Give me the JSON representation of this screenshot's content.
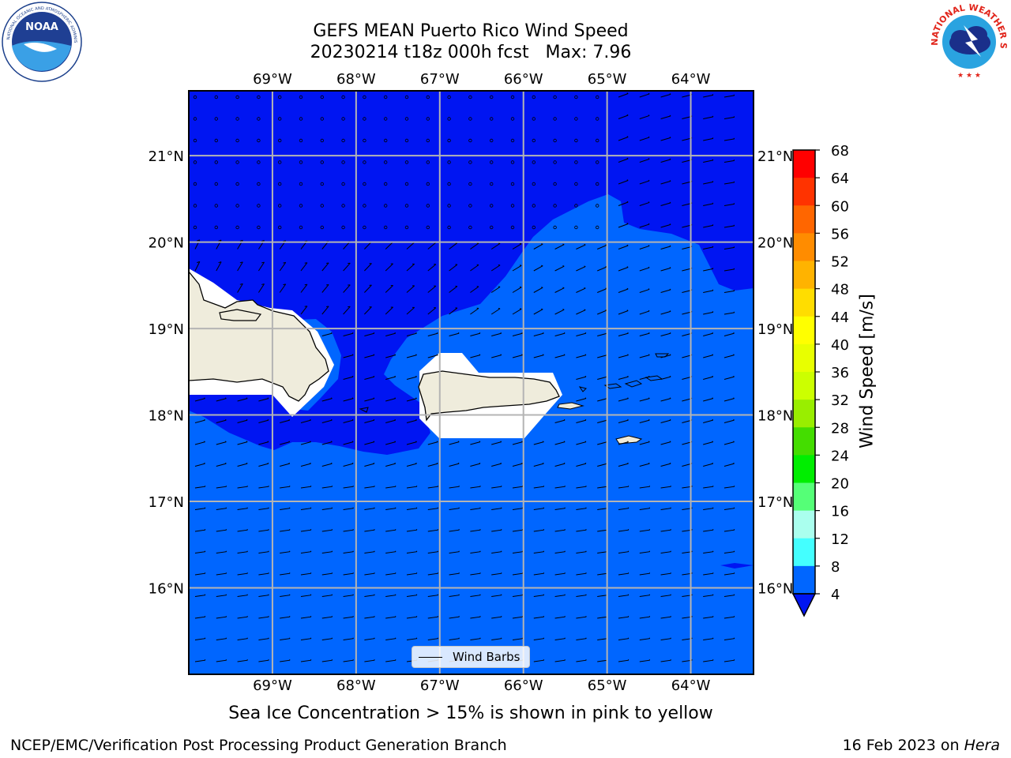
{
  "title": {
    "line1": "GEFS MEAN Puerto Rico Wind Speed",
    "line2": "20230214 t18z 000h fcst   Max: 7.96"
  },
  "logos": {
    "left": {
      "icon": "noaa-logo-icon",
      "text": "NOAA",
      "ring_text": "NATIONAL OCEANIC AND ATMOSPHERIC ADMINISTRATION · U.S. DEPARTMENT OF COMMERCE"
    },
    "right": {
      "icon": "nws-logo-icon",
      "ring_text": "NATIONAL WEATHER SERVICE"
    }
  },
  "map": {
    "lon_labels": [
      "69°W",
      "68°W",
      "67°W",
      "66°W",
      "65°W",
      "64°W"
    ],
    "lat_labels": [
      "21°N",
      "20°N",
      "19°N",
      "18°N",
      "17°N",
      "16°N"
    ],
    "lon_ticks": [
      -69,
      -68,
      -67,
      -66,
      -65,
      -64
    ],
    "lat_ticks": [
      21,
      20,
      19,
      18,
      17,
      16
    ],
    "lon_range": [
      -70,
      -63.25
    ],
    "lat_range": [
      15,
      21.75
    ],
    "gridlines": true,
    "colors": {
      "low_wind": "#0015f2",
      "band_4_8": "#0066ff",
      "land": "#efecdc"
    }
  },
  "legend": {
    "label": "Wind Barbs"
  },
  "colorbar": {
    "label": "Wind Speed [m/s]",
    "ticks": [
      "68",
      "64",
      "60",
      "56",
      "52",
      "48",
      "44",
      "40",
      "36",
      "32",
      "28",
      "24",
      "20",
      "16",
      "12",
      "8",
      "4"
    ],
    "colors": [
      "#ff0000",
      "#ff3300",
      "#ff6600",
      "#ff8c00",
      "#ffb300",
      "#ffdd00",
      "#ffff00",
      "#e8ff00",
      "#ccff00",
      "#99ee00",
      "#44dd00",
      "#00ee00",
      "#55ff77",
      "#aaffee",
      "#44ffff",
      "#00ffee",
      "#0066ff"
    ],
    "under_color": "#0015f2"
  },
  "sea_ice_note": "Sea Ice Concentration > 15% is shown in pink to yellow",
  "footer": {
    "left": "NCEP/EMC/Verification Post Processing Product Generation Branch",
    "date": "16 Feb 2023 on ",
    "host": "Hera"
  }
}
